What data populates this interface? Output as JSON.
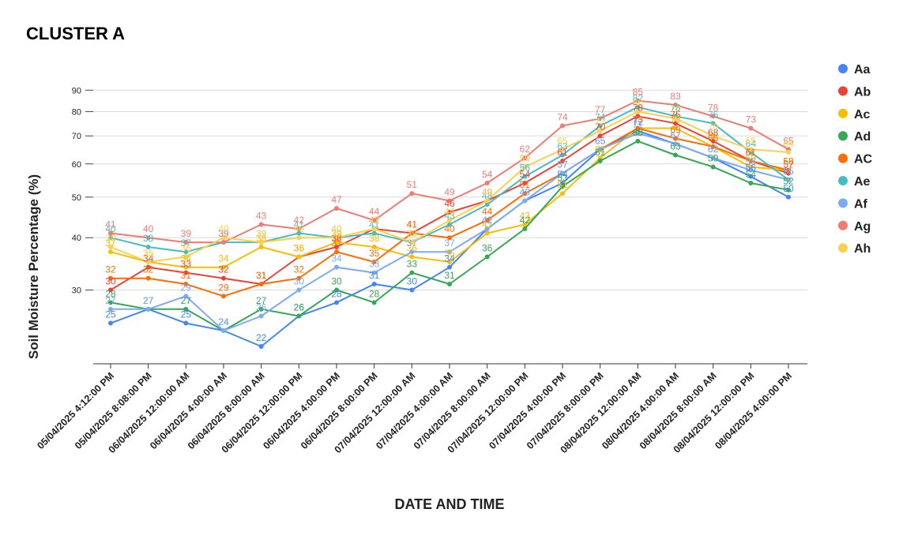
{
  "chart_data": {
    "type": "line",
    "title": "CLUSTER A",
    "xlabel": "DATE AND TIME",
    "ylabel": "Soil Moisture Percentage (%)",
    "y_scale": "log",
    "ylim": [
      20,
      100
    ],
    "y_ticks": [
      30,
      40,
      50,
      60,
      70,
      80,
      90
    ],
    "grid": true,
    "legend_position": "right",
    "categories": [
      "05/04/2025 4:12:00 PM",
      "05/04/2025 8:08:00 PM",
      "06/04/2025 12:00:00 AM",
      "06/04/2025 4:00:00 AM",
      "06/04/2025 8:00:00 AM",
      "06/04/2025 12:00:00 PM",
      "06/04/2025 4:00:00 PM",
      "06/04/2025 8:00:00 PM",
      "07/04/2025 12:00:00 AM",
      "07/04/2025 4:00:00 AM",
      "07/04/2025 8:00:00 AM",
      "07/04/2025 12:00:00 PM",
      "07/04/2025 4:00:00 PM",
      "07/04/2025 8:00:00 PM",
      "08/04/2025 12:00:00 AM",
      "08/04/2025 4:00:00 AM",
      "08/04/2025 8:00:00 AM",
      "08/04/2025 12:00:00 PM",
      "08/04/2025 4:00:00 PM"
    ],
    "series": [
      {
        "name": "Aa",
        "color": "#4285f4",
        "values": [
          25,
          27,
          25,
          24,
          22,
          26,
          28,
          31,
          30,
          34,
          42,
          49,
          54,
          65,
          72,
          67,
          62,
          56,
          50
        ]
      },
      {
        "name": "Ab",
        "color": "#ea4335",
        "values": [
          30,
          34,
          33,
          32,
          31,
          36,
          38,
          42,
          41,
          46,
          49,
          54,
          61,
          70,
          78,
          75,
          68,
          61,
          57
        ]
      },
      {
        "name": "Ac",
        "color": "#fbbc04",
        "values": [
          37,
          35,
          34,
          34,
          38,
          36,
          39,
          38,
          36,
          35,
          41,
          43,
          51,
          62,
          73,
          73,
          66,
          59,
          58
        ]
      },
      {
        "name": "Ad",
        "color": "#34a853",
        "values": [
          28,
          27,
          27,
          24,
          27,
          26,
          30,
          28,
          33,
          31,
          36,
          42,
          53,
          61,
          68,
          63,
          59,
          54,
          52
        ]
      },
      {
        "name": "AC",
        "color": "#ff6d01",
        "values": [
          32,
          32,
          31,
          29,
          31,
          32,
          37,
          35,
          41,
          40,
          44,
          51,
          57,
          65,
          73,
          69,
          66,
          61,
          58
        ]
      },
      {
        "name": "Ae",
        "color": "#46bdc6",
        "values": [
          40,
          38,
          37,
          39,
          39,
          41,
          40,
          41,
          39,
          43,
          48,
          56,
          63,
          74,
          82,
          78,
          75,
          64,
          55
        ]
      },
      {
        "name": "Af",
        "color": "#7baaf7",
        "values": [
          27,
          27,
          29,
          24,
          26,
          30,
          34,
          33,
          37,
          37,
          42,
          49,
          57,
          65,
          71,
          67,
          62,
          58,
          55
        ]
      },
      {
        "name": "Ag",
        "color": "#f07b72",
        "values": [
          41,
          40,
          39,
          39,
          43,
          42,
          47,
          44,
          51,
          49,
          54,
          62,
          74,
          77,
          85,
          83,
          78,
          73,
          65
        ]
      },
      {
        "name": "Ah",
        "color": "#fcd04f",
        "values": [
          38,
          35,
          36,
          40,
          39,
          40,
          40,
          42,
          39,
          44,
          49,
          59,
          65,
          72,
          80,
          77,
          70,
          65,
          64
        ]
      }
    ]
  }
}
